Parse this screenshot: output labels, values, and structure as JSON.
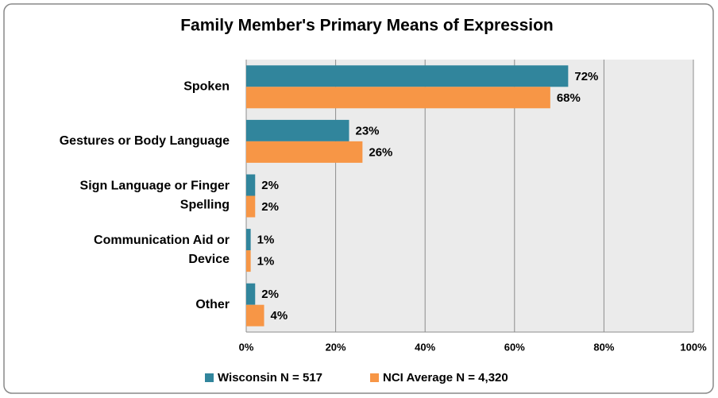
{
  "chart_data": {
    "type": "bar",
    "orientation": "horizontal",
    "title": "Family Member's Primary Means of Expression",
    "categories": [
      "Spoken",
      "Gestures or Body Language",
      "Sign Language or Finger Spelling",
      "Communication Aid or Device",
      "Other"
    ],
    "series": [
      {
        "name": "Wisconsin N = 517",
        "color": "#31859c",
        "values": [
          72,
          23,
          2,
          1,
          2
        ],
        "value_labels": [
          "72%",
          "23%",
          "2%",
          "1%",
          "2%"
        ]
      },
      {
        "name": "NCI Average N = 4,320",
        "color": "#f79646",
        "values": [
          68,
          26,
          2,
          1,
          4
        ],
        "value_labels": [
          "68%",
          "26%",
          "2%",
          "1%",
          "4%"
        ]
      }
    ],
    "xlim": [
      0,
      100
    ],
    "xticks": [
      {
        "value": 0,
        "label": "0%"
      },
      {
        "value": 20,
        "label": "20%"
      },
      {
        "value": 40,
        "label": "40%"
      },
      {
        "value": 60,
        "label": "60%"
      },
      {
        "value": 80,
        "label": "80%"
      },
      {
        "value": 100,
        "label": "100%"
      }
    ],
    "grid": true,
    "legend": "bottom"
  }
}
